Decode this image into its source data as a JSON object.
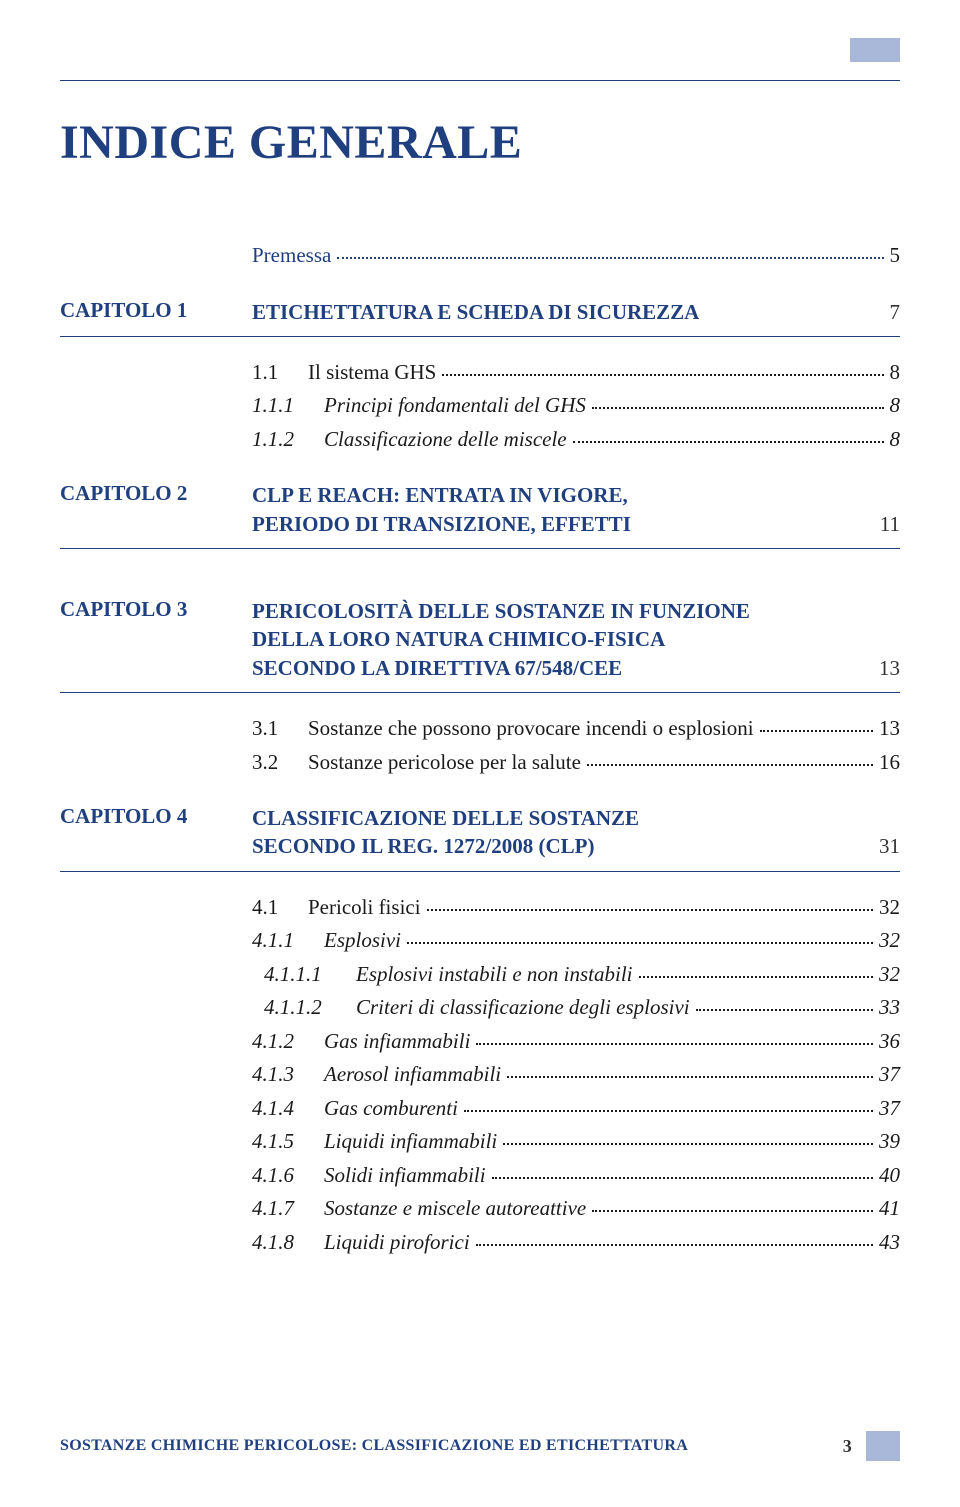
{
  "colors": {
    "primary": "#1f3f7f",
    "accent_box": "#a9b8d9",
    "body_text": "#1a1a1a"
  },
  "page_title": "INDICE GENERALE",
  "premessa": {
    "label": "Premessa",
    "page": "5"
  },
  "cap1": {
    "chapter": "CAPITOLO 1",
    "title": "ETICHETTATURA E SCHEDA DI SICUREZZA",
    "page": "7",
    "items": [
      {
        "num": "1.1",
        "label": "Il sistema GHS",
        "page": "8",
        "italic": false
      },
      {
        "num": "1.1.1",
        "label": "Principi fondamentali del GHS",
        "page": "8",
        "italic": true
      },
      {
        "num": "1.1.2",
        "label": "Classificazione delle miscele",
        "page": "8",
        "italic": true
      }
    ]
  },
  "cap2": {
    "chapter": "CAPITOLO 2",
    "title_l1": "CLP E REACH: ENTRATA IN VIGORE,",
    "title_l2": "PERIODO DI TRANSIZIONE, EFFETTI",
    "page": "11"
  },
  "cap3": {
    "chapter": "CAPITOLO 3",
    "title_l1": "PERICOLOSITÀ DELLE SOSTANZE IN FUNZIONE",
    "title_l2": "DELLA LORO NATURA CHIMICO-FISICA",
    "title_l3": "SECONDO LA DIRETTIVA 67/548/CEE",
    "page": "13",
    "items": [
      {
        "num": "3.1",
        "label": "Sostanze che possono provocare incendi o esplosioni",
        "page": "13"
      },
      {
        "num": "3.2",
        "label": "Sostanze pericolose per la salute",
        "page": "16"
      }
    ]
  },
  "cap4": {
    "chapter": "CAPITOLO 4",
    "title_l1": "CLASSIFICAZIONE DELLE SOSTANZE",
    "title_l2": "SECONDO IL REG. 1272/2008 (CLP)",
    "page": "31",
    "items": [
      {
        "num": "4.1",
        "label": "Pericoli fisici",
        "page": "32",
        "level": 1,
        "italic": false
      },
      {
        "num": "4.1.1",
        "label": "Esplosivi",
        "page": "32",
        "level": 2,
        "italic": true
      },
      {
        "num": "4.1.1.1",
        "label": "Esplosivi instabili e non instabili",
        "page": "32",
        "level": 3,
        "italic": true
      },
      {
        "num": "4.1.1.2",
        "label": "Criteri di classificazione degli esplosivi",
        "page": "33",
        "level": 3,
        "italic": true
      },
      {
        "num": "4.1.2",
        "label": "Gas infiammabili",
        "page": "36",
        "level": 2,
        "italic": true
      },
      {
        "num": "4.1.3",
        "label": "Aerosol infiammabili",
        "page": "37",
        "level": 2,
        "italic": true
      },
      {
        "num": "4.1.4",
        "label": "Gas comburenti",
        "page": "37",
        "level": 2,
        "italic": true
      },
      {
        "num": "4.1.5",
        "label": "Liquidi infiammabili",
        "page": "39",
        "level": 2,
        "italic": true
      },
      {
        "num": "4.1.6",
        "label": "Solidi infiammabili",
        "page": "40",
        "level": 2,
        "italic": true
      },
      {
        "num": "4.1.7",
        "label": "Sostanze e miscele autoreattive",
        "page": "41",
        "level": 2,
        "italic": true
      },
      {
        "num": "4.1.8",
        "label": "Liquidi piroforici",
        "page": "43",
        "level": 2,
        "italic": true
      }
    ]
  },
  "footer": {
    "text": "SOSTANZE CHIMICHE PERICOLOSE: CLASSIFICAZIONE ED ETICHETTATURA",
    "page": "3"
  }
}
